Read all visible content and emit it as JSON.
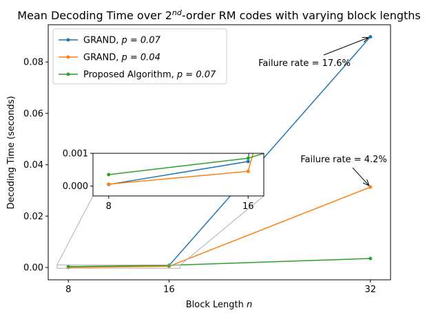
{
  "chart_data": {
    "type": "line",
    "title_prefix": "Mean Decoding Time over 2",
    "title_sup": "nd",
    "title_suffix": "-order RM codes with varying block lengths",
    "xlabel": "Block Length",
    "xlabel_var": "n",
    "ylabel": "Decoding Time (seconds)",
    "x": [
      8,
      16,
      32
    ],
    "xticks": [
      "8",
      "16",
      "32"
    ],
    "xlim": [
      6.4,
      33.6
    ],
    "ylim": [
      -0.0048,
      0.0945
    ],
    "yticks": [
      0.0,
      0.02,
      0.04,
      0.06,
      0.08
    ],
    "ytick_labels": [
      "0.00",
      "0.02",
      "0.04",
      "0.06",
      "0.08"
    ],
    "series": [
      {
        "name_text": "GRAND, ",
        "name_param": "p = 0.07",
        "color": "#1f77b4",
        "values": [
          5e-05,
          0.00075,
          0.0898
        ]
      },
      {
        "name_text": "GRAND, ",
        "name_param": "p = 0.04",
        "color": "#ff7f0e",
        "values": [
          6e-05,
          0.00045,
          0.0313
        ]
      },
      {
        "name_text": "Proposed Algorithm, ",
        "name_param": "p = 0.07",
        "color": "#2ca02c",
        "values": [
          0.00035,
          0.00085,
          0.0035
        ]
      }
    ],
    "legend_position": "top-left",
    "annotations": [
      {
        "text": "Failure rate = 17.6%",
        "target_series": 0
      },
      {
        "text": "Failure rate = 4.2%",
        "target_series": 1
      }
    ],
    "inset": {
      "xlim": [
        7.1,
        16.9
      ],
      "ylim": [
        -0.0003,
        0.001
      ],
      "xticks": [
        "8",
        "16"
      ],
      "yticks": [
        0.0,
        0.001
      ],
      "ytick_labels": [
        "0.000",
        "0.001"
      ]
    }
  }
}
